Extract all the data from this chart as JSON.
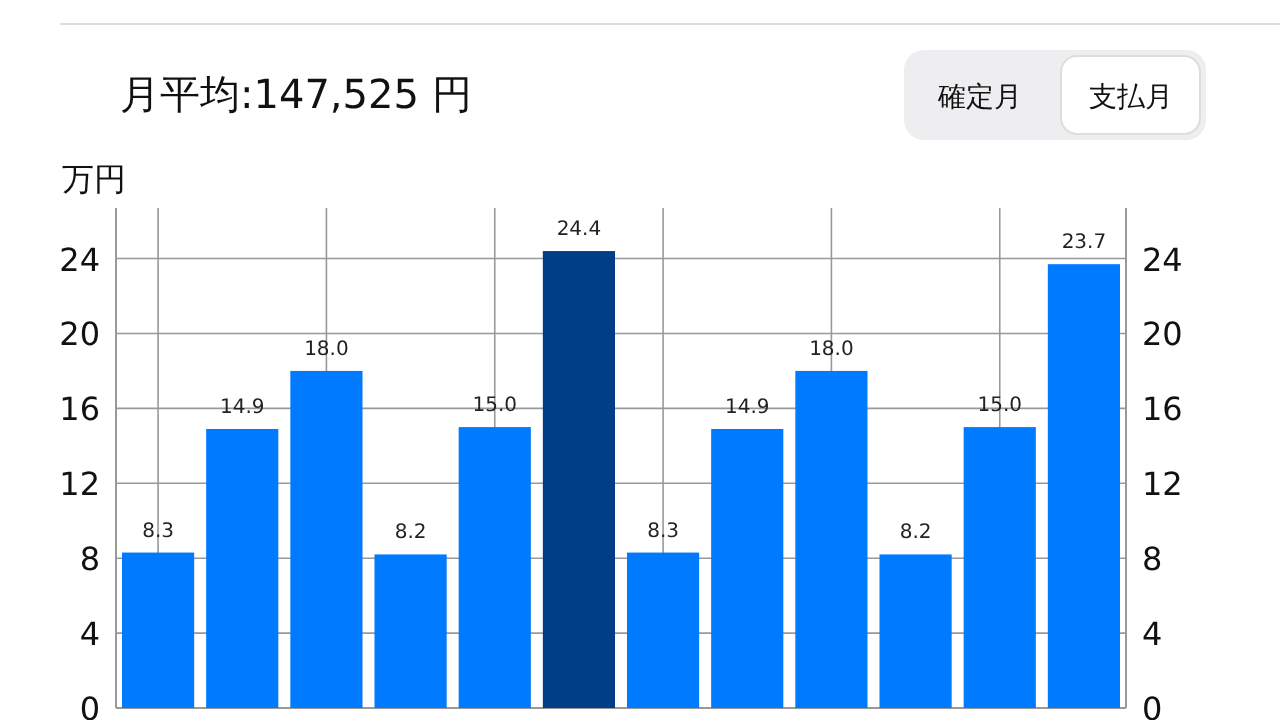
{
  "chart_data": {
    "type": "bar",
    "title": "月平均:147,525 円",
    "ylabel": "万円",
    "annotations": [
      "確定月",
      "支払月"
    ],
    "categories": [
      null,
      null,
      null,
      null,
      null,
      null,
      null,
      null,
      null,
      null,
      null,
      null
    ],
    "values": [
      8.3,
      14.9,
      18.0,
      8.2,
      15.0,
      24.4,
      8.3,
      14.9,
      18.0,
      8.2,
      15.0,
      23.7
    ],
    "colors": [
      "#007aff",
      "#007aff",
      "#007aff",
      "#007aff",
      "#007aff",
      "#003f88",
      "#007aff",
      "#007aff",
      "#007aff",
      "#007aff",
      "#007aff",
      "#007aff"
    ],
    "ylim": [
      0,
      26.7
    ],
    "yticks": [
      0,
      4,
      8,
      12,
      16,
      20,
      24
    ],
    "y2lim": [
      0,
      26.7
    ],
    "y2ticks": [
      0,
      4,
      8,
      12,
      16,
      20,
      24
    ],
    "value_labels": [
      "8.3",
      "14.9",
      "18.0",
      "8.2",
      "15.0",
      "24.4",
      "8.3",
      "14.9",
      "18.0",
      "8.2",
      "15.0",
      "23.7"
    ],
    "grid": true
  }
}
